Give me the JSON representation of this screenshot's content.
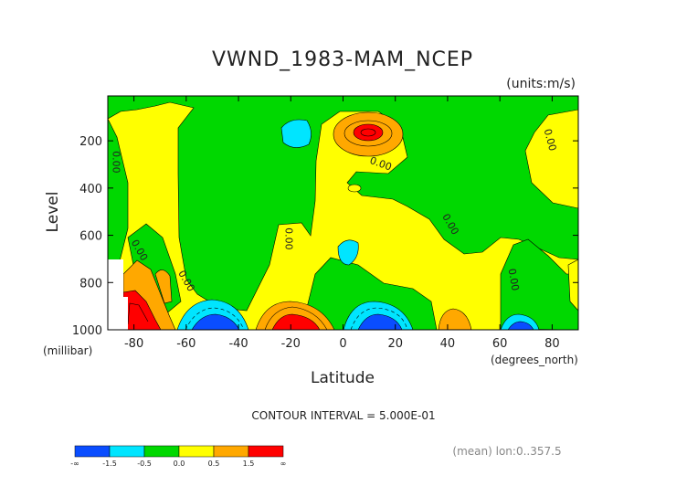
{
  "chart_data": {
    "type": "heatmap",
    "title": "VWND_1983-MAM_NCEP",
    "units": "(units:m/s)",
    "xlabel": "Latitude",
    "x_units": "(degrees_north)",
    "ylabel": "Level",
    "y_units": "(millibar)",
    "xlim": [
      -90,
      90
    ],
    "ylim": [
      1000,
      10
    ],
    "x_ticks": [
      -80,
      -60,
      -40,
      -20,
      0,
      20,
      40,
      60,
      80
    ],
    "x_tick_labels": [
      "-80",
      "-60",
      "-40",
      "-20",
      "0",
      "20",
      "40",
      "60",
      "80"
    ],
    "y_ticks": [
      200,
      400,
      600,
      800,
      1000
    ],
    "y_tick_labels": [
      "200",
      "400",
      "600",
      "800",
      "1000"
    ],
    "contour_interval": "CONTOUR INTERVAL = 5.000E-01",
    "footer_note": "(mean) lon:0..357.5",
    "contour_labels": [
      {
        "text": "0.00",
        "lat": -88,
        "lev": 290,
        "rot": 90
      },
      {
        "text": "0.00",
        "lat": -79,
        "lev": 670,
        "rot": 60
      },
      {
        "text": "0.00",
        "lat": -61,
        "lev": 800,
        "rot": 60
      },
      {
        "text": "0.00",
        "lat": -22,
        "lev": 615,
        "rot": 90
      },
      {
        "text": "0.00",
        "lat": 14,
        "lev": 310,
        "rot": 20
      },
      {
        "text": "0.00",
        "lat": 40,
        "lev": 560,
        "rot": 60
      },
      {
        "text": "0.00",
        "lat": 64,
        "lev": 790,
        "rot": 80
      },
      {
        "text": "0.00",
        "lat": 78,
        "lev": 200,
        "rot": 75
      }
    ],
    "colorbar": {
      "colors": [
        "#0a4dff",
        "#00e5ff",
        "#00d800",
        "#ffff00",
        "#ffa800",
        "#ff0000"
      ],
      "labels": [
        "-∞",
        "-1.5",
        "-0.5",
        "0.0",
        "0.5",
        "1.5",
        "∞"
      ]
    },
    "field_colors": {
      "lt_minus_1_5": "#0a4dff",
      "minus_1_5_to_minus_0_5": "#00e5ff",
      "minus_0_5_to_0": "#00d800",
      "0_to_0_5": "#ffff00",
      "0_5_to_1_5": "#ffa800",
      "gt_1_5": "#ff0000",
      "missing": "#ffffff"
    },
    "features": [
      {
        "sign": "positive",
        "max_range": "> 1.5",
        "lat_center": 8,
        "lev_center": 160
      },
      {
        "sign": "negative",
        "min_range": "-1.5 to -0.5",
        "lat_center": -17,
        "lev_center": 160
      },
      {
        "sign": "negative",
        "min_range": "< -1.5",
        "lat_center": -50,
        "lev_center": 990
      },
      {
        "sign": "positive",
        "max_range": "> 1.5",
        "lat_center": -18,
        "lev_center": 990
      },
      {
        "sign": "negative",
        "min_range": "< -1.5",
        "lat_center": 8,
        "lev_center": 990
      },
      {
        "sign": "positive",
        "max_range": "0.5 to 1.5",
        "lat_center": 40,
        "lev_center": 960
      },
      {
        "sign": "negative",
        "min_range": "< -1.5",
        "lat_center": 66,
        "lev_center": 990
      },
      {
        "sign": "positive",
        "max_range": "> 1.5",
        "lat_center": -80,
        "lev_center": 930
      },
      {
        "sign": "negative",
        "min_range": "-1.5 to -0.5",
        "lat_center": 5,
        "lev_center": 660
      }
    ]
  }
}
